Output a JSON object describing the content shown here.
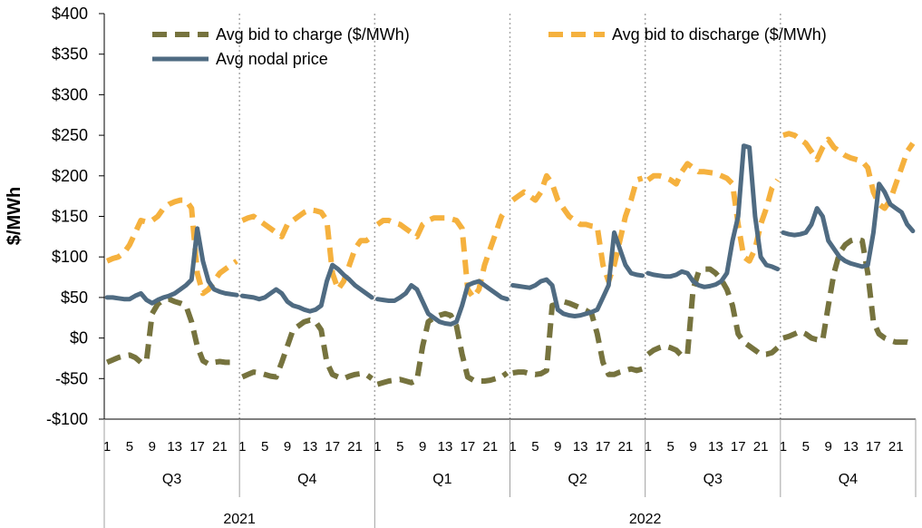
{
  "chart_data": {
    "type": "line",
    "ylabel": "$/MWh",
    "ylim": [
      -100,
      400
    ],
    "yticks": [
      -100,
      -50,
      0,
      50,
      100,
      150,
      200,
      250,
      300,
      350,
      400
    ],
    "ytick_labels": [
      "-$100",
      "-$50",
      "$0",
      "$50",
      "$100",
      "$150",
      "$200",
      "$250",
      "$300",
      "$350",
      "$400"
    ],
    "hour_ticks": [
      "1",
      "5",
      "9",
      "13",
      "17",
      "21"
    ],
    "quarters": [
      {
        "label": "Q3",
        "year": "2021"
      },
      {
        "label": "Q4",
        "year": "2021"
      },
      {
        "label": "Q1",
        "year": "2022"
      },
      {
        "label": "Q2",
        "year": "2022"
      },
      {
        "label": "Q3",
        "year": "2022"
      },
      {
        "label": "Q4",
        "year": "2022"
      }
    ],
    "years": [
      {
        "label": "2021",
        "quarters": 2
      },
      {
        "label": "2022",
        "quarters": 4
      }
    ],
    "x_points_per_quarter": 24,
    "series": [
      {
        "name": "Avg bid to charge ($/MWh)",
        "color": "#76733e",
        "style": "dashed",
        "values": [
          [
            -30,
            -27,
            -24,
            -22,
            -21,
            -24,
            -30,
            -28,
            30,
            42,
            47,
            48,
            45,
            43,
            40,
            20,
            -10,
            -28,
            -32,
            -30,
            -29,
            -30,
            -30,
            -30
          ],
          [
            -48,
            -45,
            -42,
            -43,
            -45,
            -47,
            -48,
            -30,
            -10,
            10,
            15,
            20,
            22,
            20,
            10,
            -30,
            -45,
            -48,
            -50,
            -47,
            -45,
            -44,
            -45,
            -50
          ],
          [
            -57,
            -55,
            -53,
            -52,
            -51,
            -53,
            -55,
            -52,
            -10,
            20,
            25,
            28,
            30,
            28,
            15,
            -20,
            -48,
            -52,
            -53,
            -53,
            -52,
            -50,
            -48,
            -43
          ],
          [
            -43,
            -42,
            -42,
            -44,
            -45,
            -44,
            -40,
            40,
            42,
            45,
            43,
            40,
            37,
            34,
            30,
            5,
            -30,
            -45,
            -45,
            -42,
            -40,
            -38,
            -40,
            -38
          ],
          [
            -20,
            -15,
            -12,
            -10,
            -12,
            -15,
            -22,
            -20,
            60,
            82,
            85,
            85,
            80,
            72,
            60,
            40,
            5,
            -5,
            -10,
            -15,
            -20,
            -20,
            -18,
            -12
          ],
          [
            0,
            2,
            5,
            8,
            5,
            0,
            -2,
            -3,
            40,
            80,
            105,
            115,
            120,
            122,
            120,
            80,
            20,
            5,
            0,
            -3,
            -5,
            -5,
            -5,
            -7
          ]
        ]
      },
      {
        "name": "Avg bid to discharge ($/MWh)",
        "color": "#f5b13e",
        "style": "dashed",
        "values": [
          [
            95,
            98,
            100,
            105,
            115,
            130,
            145,
            143,
            145,
            150,
            160,
            165,
            168,
            170,
            170,
            160,
            80,
            55,
            60,
            70,
            80,
            85,
            90,
            95
          ],
          [
            145,
            148,
            150,
            145,
            140,
            135,
            130,
            125,
            140,
            145,
            150,
            155,
            158,
            157,
            155,
            145,
            80,
            60,
            70,
            90,
            110,
            120,
            120,
            125
          ],
          [
            140,
            145,
            145,
            142,
            140,
            135,
            130,
            125,
            140,
            145,
            148,
            148,
            148,
            147,
            145,
            135,
            60,
            50,
            60,
            90,
            110,
            130,
            150,
            160
          ],
          [
            170,
            175,
            180,
            175,
            170,
            180,
            200,
            190,
            170,
            160,
            150,
            145,
            140,
            140,
            138,
            137,
            90,
            70,
            90,
            120,
            150,
            170,
            195,
            197
          ],
          [
            195,
            200,
            200,
            198,
            195,
            190,
            205,
            215,
            210,
            205,
            205,
            204,
            203,
            200,
            197,
            190,
            140,
            100,
            95,
            110,
            140,
            160,
            185,
            195
          ],
          [
            250,
            252,
            250,
            245,
            240,
            230,
            220,
            235,
            245,
            235,
            230,
            225,
            222,
            220,
            218,
            210,
            180,
            165,
            160,
            170,
            190,
            210,
            230,
            240
          ]
        ]
      },
      {
        "name": "Avg nodal price",
        "color": "#4f6b82",
        "style": "solid",
        "values": [
          [
            50,
            50,
            49,
            48,
            48,
            52,
            55,
            47,
            43,
            47,
            50,
            52,
            55,
            60,
            65,
            72,
            135,
            95,
            70,
            60,
            57,
            55,
            54,
            53
          ],
          [
            52,
            51,
            50,
            48,
            50,
            55,
            60,
            55,
            45,
            40,
            38,
            35,
            33,
            35,
            40,
            70,
            90,
            85,
            78,
            72,
            65,
            60,
            55,
            50
          ],
          [
            48,
            47,
            46,
            46,
            50,
            55,
            65,
            60,
            45,
            30,
            25,
            20,
            18,
            17,
            20,
            40,
            65,
            68,
            70,
            65,
            60,
            55,
            50,
            48
          ],
          [
            65,
            64,
            63,
            62,
            65,
            70,
            72,
            65,
            35,
            30,
            28,
            27,
            28,
            30,
            32,
            35,
            50,
            65,
            130,
            110,
            90,
            80,
            78,
            77
          ],
          [
            80,
            78,
            77,
            76,
            76,
            78,
            82,
            80,
            70,
            65,
            63,
            64,
            66,
            70,
            80,
            120,
            150,
            237,
            235,
            150,
            100,
            90,
            88,
            85
          ],
          [
            130,
            128,
            127,
            128,
            130,
            140,
            160,
            150,
            120,
            110,
            100,
            95,
            92,
            90,
            88,
            90,
            130,
            190,
            180,
            165,
            160,
            155,
            140,
            132
          ]
        ]
      }
    ]
  }
}
